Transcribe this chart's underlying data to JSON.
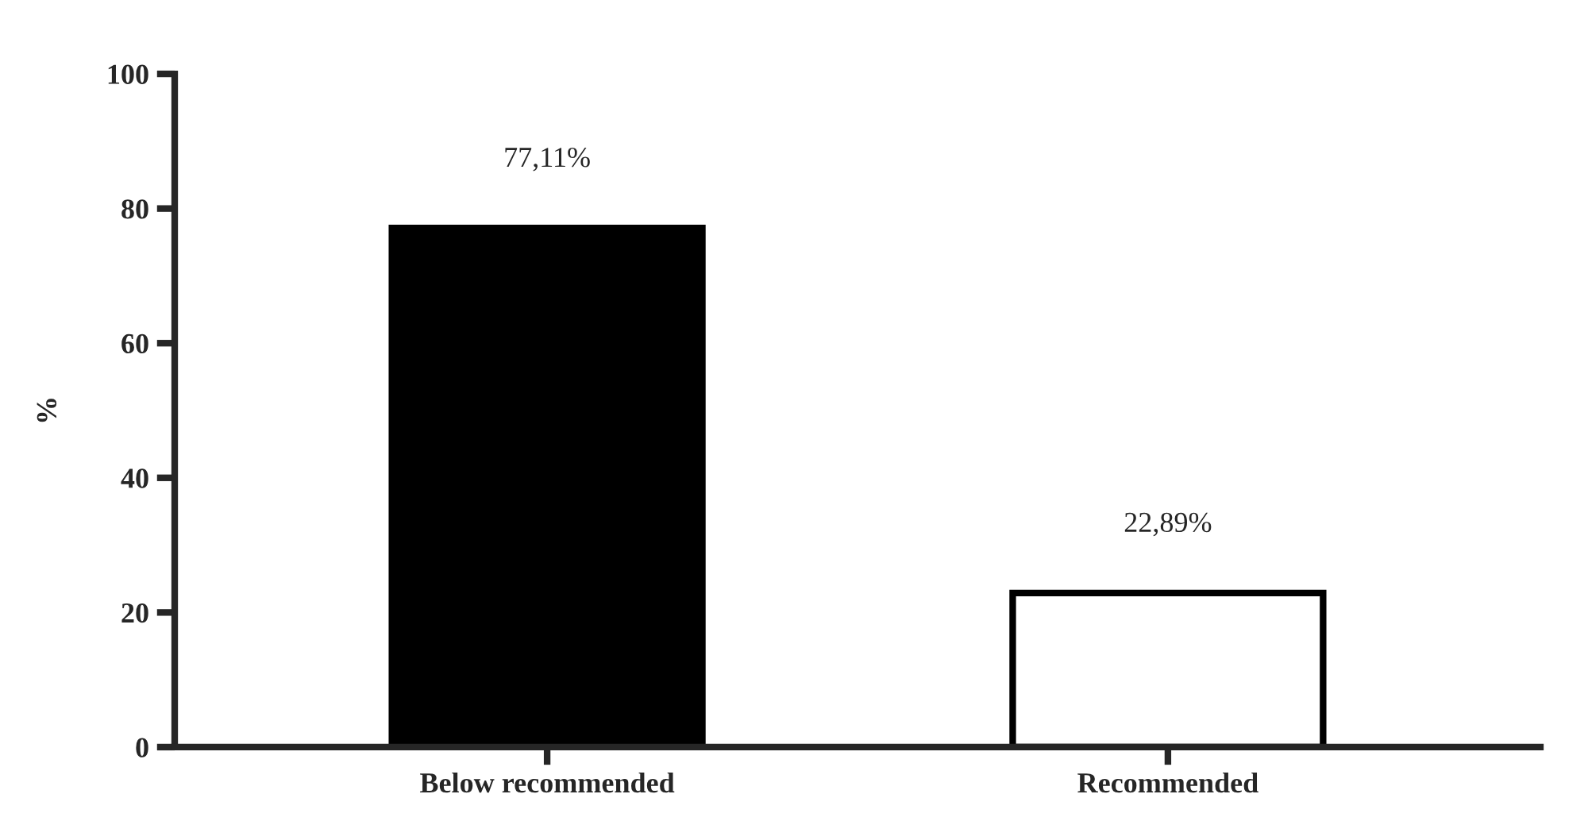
{
  "chart_data": {
    "type": "bar",
    "ylabel": "%",
    "categories": [
      "Below recommended",
      "Recommended"
    ],
    "values": [
      77.11,
      22.89
    ],
    "colors": [
      "#000000",
      "#ffffff"
    ],
    "value_labels": [
      "77,11%",
      "22,89%"
    ],
    "ylim": [
      0,
      100
    ],
    "yticks": [
      0,
      20,
      40,
      60,
      80,
      100
    ],
    "grid": false,
    "legend": false
  }
}
